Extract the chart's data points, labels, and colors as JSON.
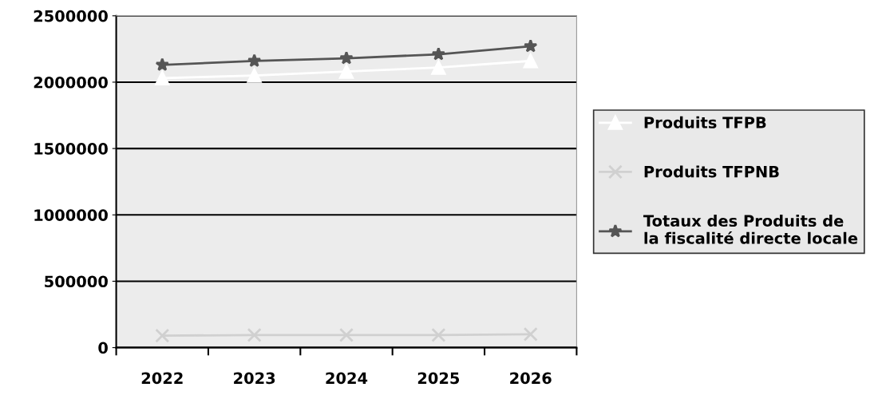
{
  "chart_data": {
    "type": "line",
    "categories": [
      "2022",
      "2023",
      "2024",
      "2025",
      "2026"
    ],
    "series": [
      {
        "name": "Produits TFPB",
        "color": "#ffffff",
        "marker": "triangle",
        "values": [
          2030000,
          2050000,
          2080000,
          2110000,
          2160000
        ]
      },
      {
        "name": "Produits TFPNB",
        "color": "#d0d0d0",
        "marker": "cross",
        "values": [
          90000,
          95000,
          95000,
          95000,
          100000
        ]
      },
      {
        "name": "Totaux des Produits de\nla fiscalité directe locale",
        "color": "#555555",
        "marker": "star",
        "values": [
          2130000,
          2160000,
          2180000,
          2210000,
          2270000
        ]
      }
    ],
    "ylim": [
      0,
      2500000
    ],
    "yticks": [
      0,
      500000,
      1000000,
      1500000,
      2000000,
      2500000
    ],
    "grid": "y",
    "legend": "right",
    "line_style": "solid"
  }
}
